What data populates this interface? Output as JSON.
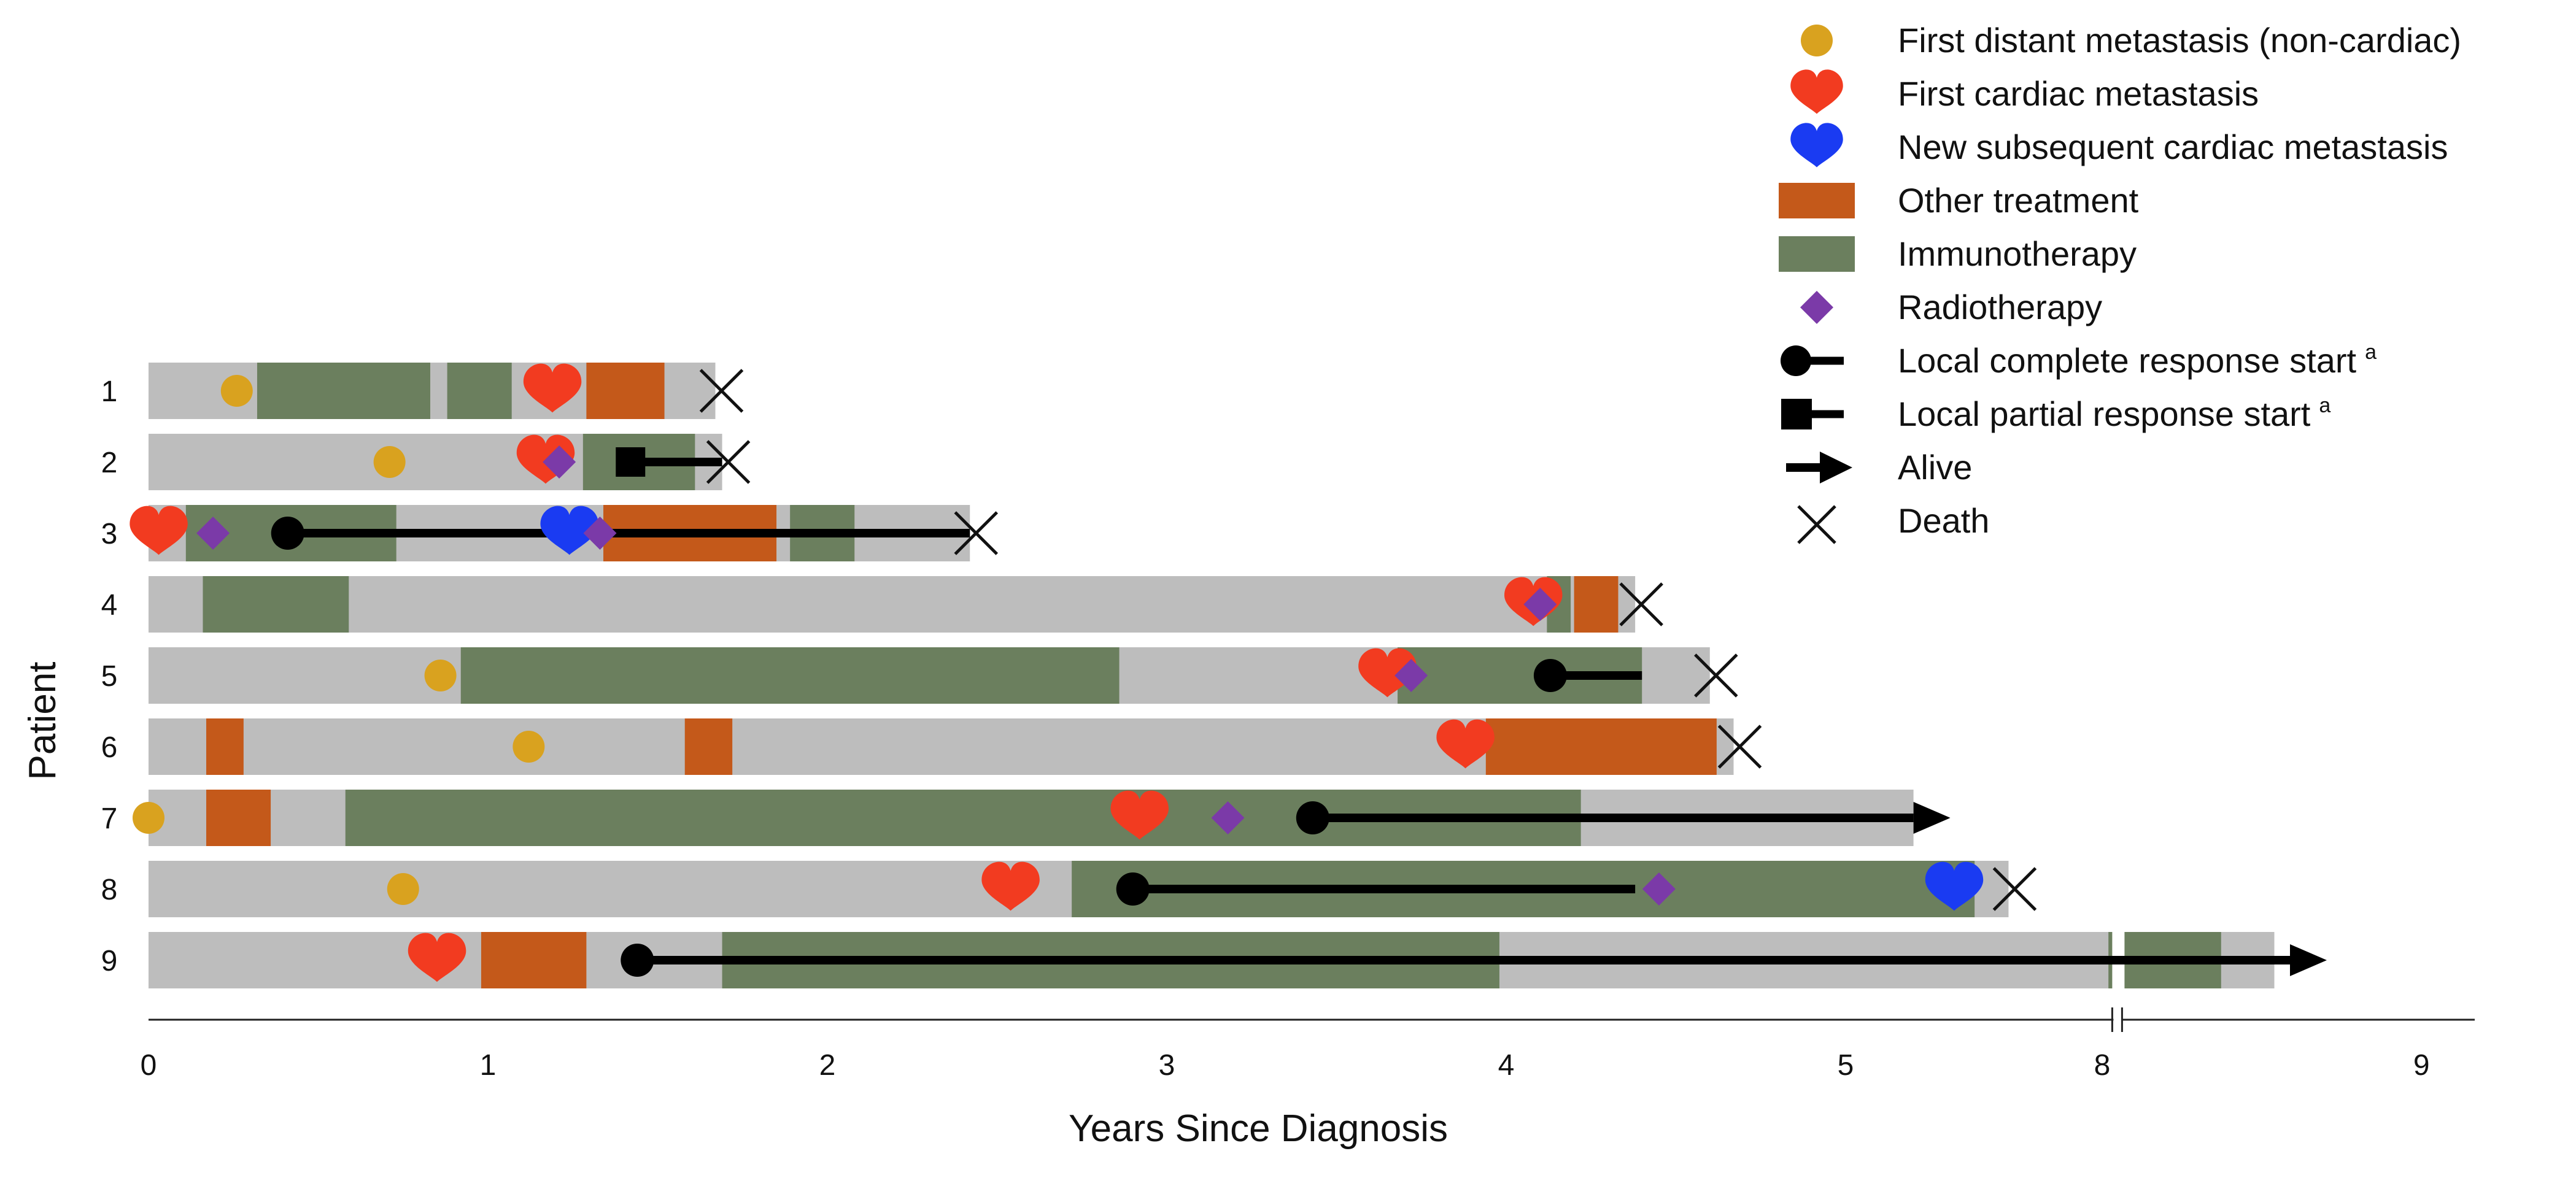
{
  "chart_data": {
    "type": "swimmer",
    "xlabel": "Years Since Diagnosis",
    "ylabel": "Patient",
    "x_ticks": [
      "0",
      "1",
      "2",
      "3",
      "4",
      "5",
      "8",
      "9"
    ],
    "axis_break_after": "5",
    "patients": [
      {
        "label": "1",
        "end": 1.67,
        "outcome": "death",
        "segments": [
          {
            "type": "Immunotherapy",
            "start": 0.32,
            "end": 0.83
          },
          {
            "type": "Immunotherapy",
            "start": 0.88,
            "end": 1.07
          },
          {
            "type": "Other treatment",
            "start": 1.29,
            "end": 1.52
          }
        ],
        "events": [
          {
            "type": "First distant metastasis (non-cardiac)",
            "t": 0.26
          },
          {
            "type": "First cardiac metastasis",
            "t": 1.19
          }
        ],
        "responses": []
      },
      {
        "label": "2",
        "end": 1.69,
        "outcome": "death",
        "segments": [
          {
            "type": "Immunotherapy",
            "start": 1.28,
            "end": 1.61
          }
        ],
        "events": [
          {
            "type": "First distant metastasis (non-cardiac)",
            "t": 0.71
          },
          {
            "type": "First cardiac metastasis",
            "t": 1.17
          },
          {
            "type": "Radiotherapy",
            "t": 1.21
          }
        ],
        "responses": [
          {
            "type": "Local partial response start",
            "start": 1.42,
            "end": 1.69
          }
        ]
      },
      {
        "label": "3",
        "end": 2.42,
        "outcome": "death",
        "segments": [
          {
            "type": "Immunotherapy",
            "start": 0.11,
            "end": 0.73
          },
          {
            "type": "Other treatment",
            "start": 1.34,
            "end": 1.85
          },
          {
            "type": "Immunotherapy",
            "start": 1.89,
            "end": 2.08
          }
        ],
        "events": [
          {
            "type": "First cardiac metastasis",
            "t": 0.03
          },
          {
            "type": "Radiotherapy",
            "t": 0.19
          },
          {
            "type": "New subsequent cardiac metastasis",
            "t": 1.24
          },
          {
            "type": "Radiotherapy",
            "t": 1.33
          }
        ],
        "responses": [
          {
            "type": "Local complete response start",
            "start": 0.41,
            "end": 2.42
          }
        ]
      },
      {
        "label": "4",
        "end": 4.38,
        "outcome": "death",
        "segments": [
          {
            "type": "Immunotherapy",
            "start": 0.16,
            "end": 0.59
          },
          {
            "type": "Immunotherapy",
            "start": 4.12,
            "end": 4.19
          },
          {
            "type": "Other treatment",
            "start": 4.2,
            "end": 4.33
          }
        ],
        "events": [
          {
            "type": "First cardiac metastasis",
            "t": 4.08
          },
          {
            "type": "Radiotherapy",
            "t": 4.1
          }
        ],
        "responses": []
      },
      {
        "label": "5",
        "end": 4.6,
        "outcome": "death",
        "segments": [
          {
            "type": "Immunotherapy",
            "start": 0.92,
            "end": 2.86
          },
          {
            "type": "Immunotherapy",
            "start": 3.68,
            "end": 4.4
          }
        ],
        "events": [
          {
            "type": "First distant metastasis (non-cardiac)",
            "t": 0.86
          },
          {
            "type": "First cardiac metastasis",
            "t": 3.65
          },
          {
            "type": "Radiotherapy",
            "t": 3.72
          }
        ],
        "responses": [
          {
            "type": "Local complete response start",
            "start": 4.13,
            "end": 4.4
          }
        ]
      },
      {
        "label": "6",
        "end": 4.67,
        "outcome": "death",
        "segments": [
          {
            "type": "Other treatment",
            "start": 0.17,
            "end": 0.28
          },
          {
            "type": "Other treatment",
            "start": 1.58,
            "end": 1.72
          },
          {
            "type": "Other treatment",
            "start": 3.94,
            "end": 4.62
          }
        ],
        "events": [
          {
            "type": "First distant metastasis (non-cardiac)",
            "t": 1.12
          },
          {
            "type": "First cardiac metastasis",
            "t": 3.88
          }
        ],
        "responses": []
      },
      {
        "label": "7",
        "end": 5.2,
        "outcome": "alive",
        "segments": [
          {
            "type": "Other treatment",
            "start": 0.17,
            "end": 0.36
          },
          {
            "type": "Immunotherapy",
            "start": 0.58,
            "end": 4.22
          }
        ],
        "events": [
          {
            "type": "First distant metastasis (non-cardiac)",
            "t": 0.0
          },
          {
            "type": "First cardiac metastasis",
            "t": 2.92
          },
          {
            "type": "Radiotherapy",
            "t": 3.18
          }
        ],
        "responses": [
          {
            "type": "Local complete response start",
            "start": 3.43,
            "end": 5.2
          }
        ]
      },
      {
        "label": "8",
        "end": 5.48,
        "outcome": "death",
        "segments": [
          {
            "type": "Immunotherapy",
            "start": 2.72,
            "end": 5.38
          }
        ],
        "events": [
          {
            "type": "First distant metastasis (non-cardiac)",
            "t": 0.75
          },
          {
            "type": "First cardiac metastasis",
            "t": 2.54
          },
          {
            "type": "Radiotherapy",
            "t": 4.45
          },
          {
            "type": "New subsequent cardiac metastasis",
            "t": 5.32
          }
        ],
        "responses": [
          {
            "type": "Local complete response start",
            "start": 2.9,
            "end": 4.38
          }
        ]
      },
      {
        "label": "9",
        "end": 8.55,
        "outcome": "alive",
        "segments": [
          {
            "type": "Other treatment",
            "start": 0.98,
            "end": 1.29
          },
          {
            "type": "Immunotherapy",
            "start": 1.69,
            "end": 3.98
          },
          {
            "type": "Immunotherapy",
            "start": 8.02,
            "end": 8.38
          }
        ],
        "events": [
          {
            "type": "First cardiac metastasis",
            "t": 0.85
          }
        ],
        "responses": [
          {
            "type": "Local complete response start",
            "start": 1.44,
            "end": 8.6
          }
        ]
      }
    ],
    "legend": [
      {
        "key": "metastasis",
        "label": "First distant metastasis (non-cardiac)"
      },
      {
        "key": "cardiac",
        "label": "First cardiac metastasis"
      },
      {
        "key": "subsequent",
        "label": "New subsequent cardiac metastasis"
      },
      {
        "key": "other",
        "label": "Other treatment"
      },
      {
        "key": "immuno",
        "label": "Immunotherapy"
      },
      {
        "key": "radio",
        "label": "Radiotherapy"
      },
      {
        "key": "complete",
        "label": "Local complete response start",
        "sup": "a"
      },
      {
        "key": "partial",
        "label": "Local partial response start",
        "sup": "a"
      },
      {
        "key": "alive",
        "label": "Alive"
      },
      {
        "key": "death",
        "label": "Death"
      }
    ],
    "colors": {
      "bar": "#bdbdbd",
      "Immunotherapy": "#6b7f5e",
      "Other treatment": "#c4591a",
      "First distant metastasis (non-cardiac)": "#d9a21f",
      "First cardiac metastasis": "#f23b20",
      "New subsequent cardiac metastasis": "#1a3bf2",
      "Radiotherapy": "#7b3aa8",
      "response": "#000000"
    }
  }
}
